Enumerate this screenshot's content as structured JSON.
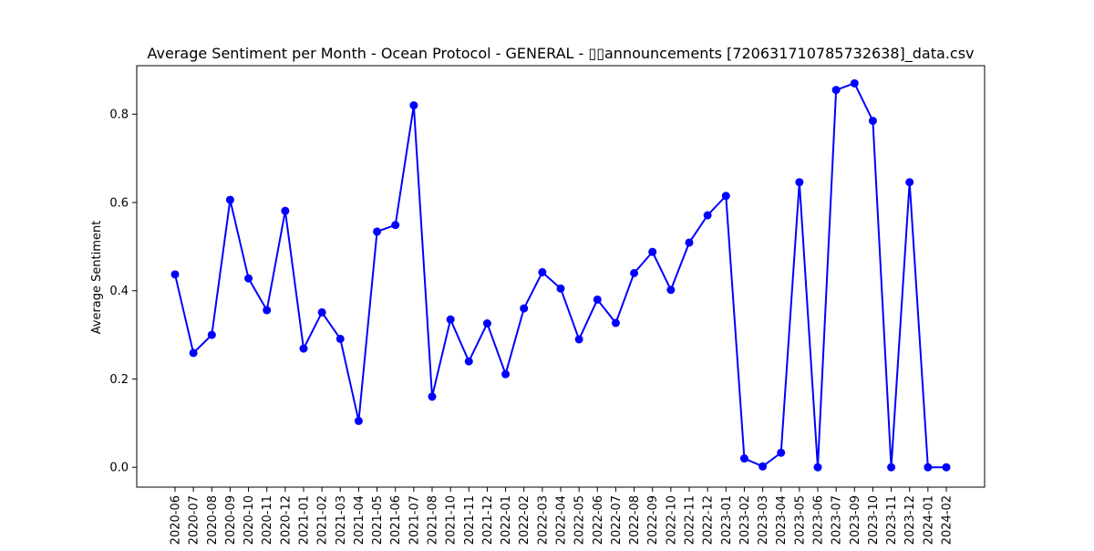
{
  "chart_data": {
    "type": "line",
    "title": "Average Sentiment per Month - Ocean Protocol - GENERAL - ▯▯announcements [720631710785732638]_data.csv",
    "xlabel": "",
    "ylabel": "Average Sentiment",
    "ylim": [
      -0.045,
      0.91
    ],
    "yticks": [
      "0.0",
      "0.2",
      "0.4",
      "0.6",
      "0.8"
    ],
    "ytick_values": [
      0.0,
      0.2,
      0.4,
      0.6,
      0.8
    ],
    "grid": false,
    "colors": {
      "line": "#0000ff",
      "marker": "#0000ff"
    },
    "categories": [
      "2020-06",
      "2020-07",
      "2020-08",
      "2020-09",
      "2020-10",
      "2020-11",
      "2020-12",
      "2021-01",
      "2021-02",
      "2021-03",
      "2021-04",
      "2021-05",
      "2021-06",
      "2021-07",
      "2021-08",
      "2021-10",
      "2021-11",
      "2021-12",
      "2022-01",
      "2022-02",
      "2022-03",
      "2022-04",
      "2022-05",
      "2022-06",
      "2022-07",
      "2022-08",
      "2022-09",
      "2022-10",
      "2022-11",
      "2022-12",
      "2023-01",
      "2023-02",
      "2023-03",
      "2023-04",
      "2023-05",
      "2023-06",
      "2023-07",
      "2023-09",
      "2023-10",
      "2023-11",
      "2023-12",
      "2024-01",
      "2024-02"
    ],
    "values": [
      0.437,
      0.259,
      0.3,
      0.606,
      0.428,
      0.356,
      0.581,
      0.269,
      0.351,
      0.291,
      0.105,
      0.534,
      0.549,
      0.82,
      0.16,
      0.335,
      0.24,
      0.326,
      0.211,
      0.36,
      0.442,
      0.405,
      0.29,
      0.38,
      0.327,
      0.44,
      0.488,
      0.402,
      0.509,
      0.571,
      0.615,
      0.02,
      0.002,
      0.033,
      0.646,
      0.0,
      0.855,
      0.87,
      0.785,
      0.0,
      0.646,
      0.0,
      0.0
    ]
  }
}
